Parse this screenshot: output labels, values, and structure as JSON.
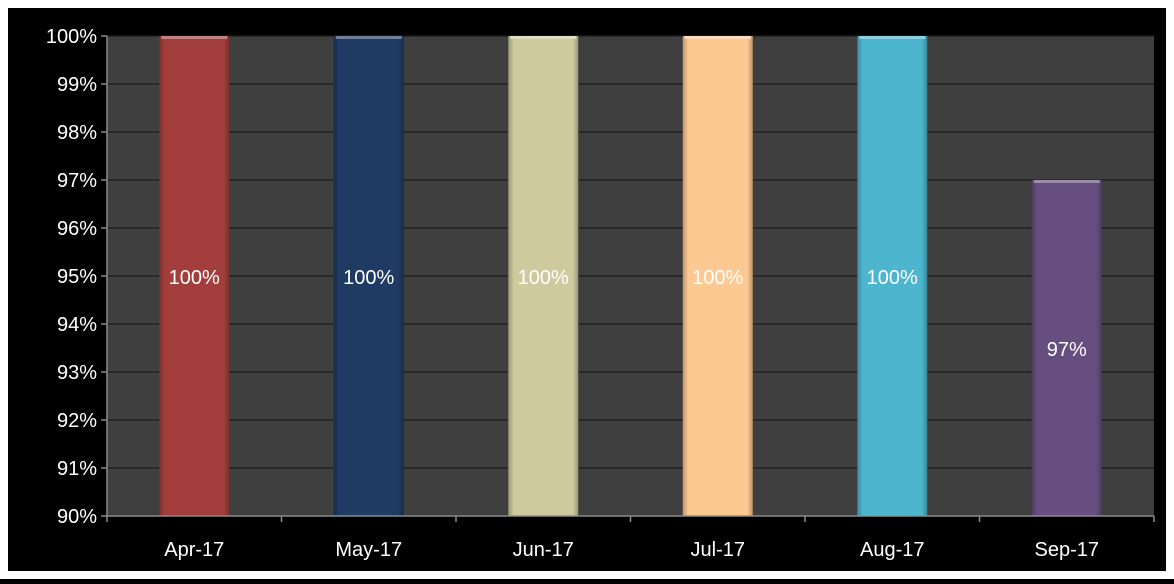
{
  "chart_data": {
    "type": "bar",
    "categories": [
      "Apr-17",
      "May-17",
      "Jun-17",
      "Jul-17",
      "Aug-17",
      "Sep-17"
    ],
    "values": [
      100,
      100,
      100,
      100,
      100,
      97
    ],
    "value_labels": [
      "100%",
      "100%",
      "100%",
      "100%",
      "100%",
      "97%"
    ],
    "bar_colors": [
      "#A23F3C",
      "#1F3A63",
      "#CFCA9E",
      "#FDC993",
      "#4DB6CE",
      "#664E80"
    ],
    "data_label_color": "#FFFFFF",
    "ylim": [
      90,
      100
    ],
    "yticks": [
      90,
      91,
      92,
      93,
      94,
      95,
      96,
      97,
      98,
      99,
      100
    ],
    "ytick_labels": [
      "90%",
      "91%",
      "92%",
      "93%",
      "94%",
      "95%",
      "96%",
      "97%",
      "98%",
      "99%",
      "100%"
    ],
    "title": "",
    "xlabel": "",
    "ylabel": "",
    "grid": true,
    "legend": false,
    "colors": {
      "page_background": "#000000",
      "plot_background": "#3F3F3F",
      "gridline": "#1C1C1C",
      "axis": "#8C8C8C",
      "tick_label": "#000000"
    }
  }
}
